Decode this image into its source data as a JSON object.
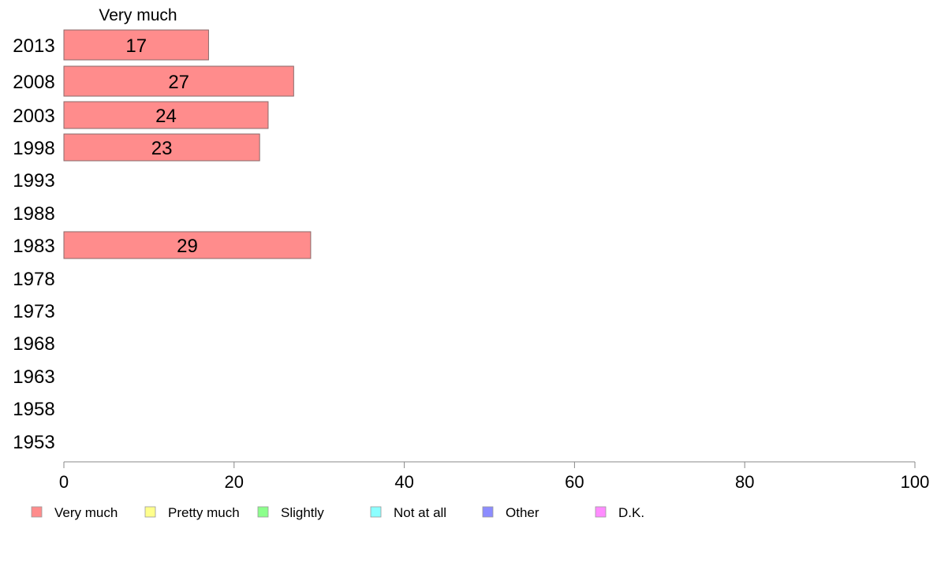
{
  "chart_data": {
    "type": "bar",
    "orientation": "horizontal",
    "stacked": true,
    "title": "",
    "xlabel": "",
    "ylabel": "",
    "xlim": [
      0,
      100
    ],
    "x_ticks": [
      0,
      20,
      40,
      60,
      80,
      100
    ],
    "grid": false,
    "categories": [
      "2013",
      "2008",
      "2003",
      "1998",
      "1993",
      "1988",
      "1983",
      "1978",
      "1973",
      "1968",
      "1963",
      "1958",
      "1953"
    ],
    "series": [
      {
        "name": "Very much",
        "color": "#ff8c8c",
        "values": [
          17,
          27,
          24,
          23,
          null,
          null,
          29,
          null,
          null,
          null,
          null,
          null,
          null
        ],
        "labels": [
          "17",
          "27",
          "24",
          "23",
          "",
          "",
          "29",
          "",
          "",
          "",
          "",
          "",
          ""
        ]
      },
      {
        "name": "Pretty much",
        "color": "#ffff8c",
        "values": [
          null,
          null,
          null,
          null,
          null,
          null,
          null,
          null,
          null,
          null,
          null,
          null,
          null
        ]
      },
      {
        "name": "Slightly",
        "color": "#8cff8c",
        "values": [
          null,
          null,
          null,
          null,
          null,
          null,
          null,
          null,
          null,
          null,
          null,
          null,
          null
        ]
      },
      {
        "name": "Not at all",
        "color": "#8cffff",
        "values": [
          null,
          null,
          null,
          null,
          null,
          null,
          null,
          null,
          null,
          null,
          null,
          null,
          null
        ]
      },
      {
        "name": "Other",
        "color": "#8c8cff",
        "values": [
          null,
          null,
          null,
          null,
          null,
          null,
          null,
          null,
          null,
          null,
          null,
          null,
          null
        ]
      },
      {
        "name": "D.K.",
        "color": "#ff8cff",
        "values": [
          null,
          null,
          null,
          null,
          null,
          null,
          null,
          null,
          null,
          null,
          null,
          null,
          null
        ]
      }
    ],
    "segment_header": "Very much",
    "legend_position": "bottom"
  }
}
